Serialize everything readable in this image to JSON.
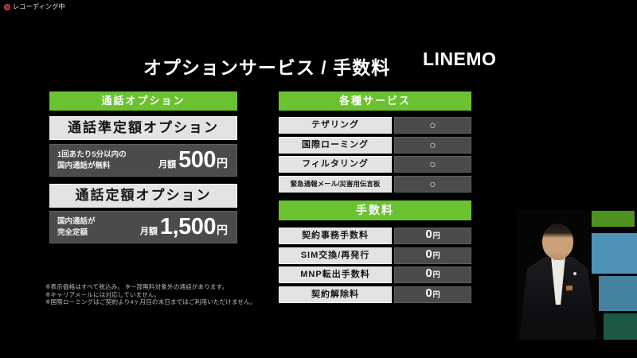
{
  "recording": {
    "label": "レコーディング中"
  },
  "slide": {
    "title": "オプションサービス / 手数料",
    "logo": "LINEMO",
    "call_options": {
      "header": "通話オプション",
      "plans": [
        {
          "name": "通話準定額オプション",
          "desc_line1": "1回あたり5分以内の",
          "desc_line2": "国内通話が無料",
          "price_label": "月額",
          "price_value": "500",
          "price_unit": "円"
        },
        {
          "name": "通話定額オプション",
          "desc_line1": "国内通話が",
          "desc_line2": "完全定額",
          "price_label": "月額",
          "price_value": "1,500",
          "price_unit": "円"
        }
      ]
    },
    "services": {
      "header": "各種サービス",
      "rows": [
        {
          "label": "テザリング",
          "value": "○"
        },
        {
          "label": "国際ローミング",
          "value": "○"
        },
        {
          "label": "フィルタリング",
          "value": "○"
        },
        {
          "label": "緊急通報メール/災害用伝言板",
          "value": "○"
        }
      ]
    },
    "fees": {
      "header": "手数料",
      "rows": [
        {
          "label": "契約事務手数料",
          "value": "0",
          "unit": "円"
        },
        {
          "label": "SIM交換/再発行",
          "value": "0",
          "unit": "円"
        },
        {
          "label": "MNP転出手数料",
          "value": "0",
          "unit": "円"
        },
        {
          "label": "契約解除料",
          "value": "0",
          "unit": "円"
        }
      ]
    },
    "footnotes": [
      "※表示価格はすべて税込み。 ※一部無料対象外の通話があります。",
      "※キャリアメールには対応していません。",
      "※国際ローミングはご契約より4ヶ月目の末日まではご利用いただけません。"
    ]
  },
  "colors": {
    "accent_green": "#6bc230",
    "cell_light": "#e3e3e3",
    "cell_dark": "#4b4b4d",
    "recording_red": "#e0554a",
    "stage_green": "#4e9220",
    "stage_blue": "#4e93b7",
    "stage_teal": "#1d5847"
  }
}
